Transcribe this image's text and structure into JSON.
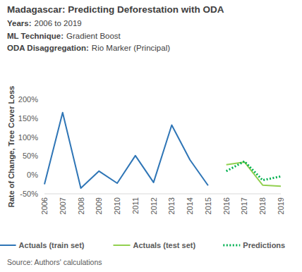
{
  "chart_data": {
    "type": "line",
    "title": "Madagascar: Predicting Deforestation with ODA",
    "subtitles": [
      {
        "label": "Years:",
        "text": "2006 to 2019"
      },
      {
        "label": "ML Technique:",
        "text": "Gradient Boost"
      },
      {
        "label": "ODA Disaggregation:",
        "text": "Rio Marker (Principal)"
      }
    ],
    "y_label": "Rate of Change, Tree Cover Loss",
    "source": "Source: Authors' calculations",
    "categories": [
      "2006",
      "2007",
      "2008",
      "2009",
      "2010",
      "2011",
      "2012",
      "2013",
      "2014",
      "2015",
      "2016",
      "2017",
      "2018",
      "2019"
    ],
    "series": [
      {
        "name": "Actuals (train set)",
        "color": "#2e75b6",
        "line_style": "solid",
        "values": [
          -25,
          165,
          -35,
          10,
          -22,
          51,
          -20,
          132,
          40,
          -28,
          null,
          null,
          null,
          null
        ]
      },
      {
        "name": "Actuals (test set)",
        "color": "#92d050",
        "line_style": "solid",
        "values": [
          null,
          null,
          null,
          null,
          null,
          null,
          null,
          null,
          null,
          null,
          27,
          34,
          -27,
          -30
        ]
      },
      {
        "name": "Predictions",
        "color": "#00b050",
        "line_style": "dotted",
        "values": [
          null,
          null,
          null,
          null,
          null,
          null,
          null,
          null,
          null,
          null,
          10,
          36,
          -14,
          -4
        ]
      }
    ],
    "ylim": [
      -50,
      200
    ],
    "yticks": [
      {
        "value": -50,
        "label": "-50%"
      },
      {
        "value": 0,
        "label": "0%"
      },
      {
        "value": 50,
        "label": "50%"
      },
      {
        "value": 100,
        "label": "100%"
      },
      {
        "value": 150,
        "label": "150%"
      },
      {
        "value": 200,
        "label": "200%"
      }
    ],
    "grid": false,
    "legend": "bottom"
  }
}
